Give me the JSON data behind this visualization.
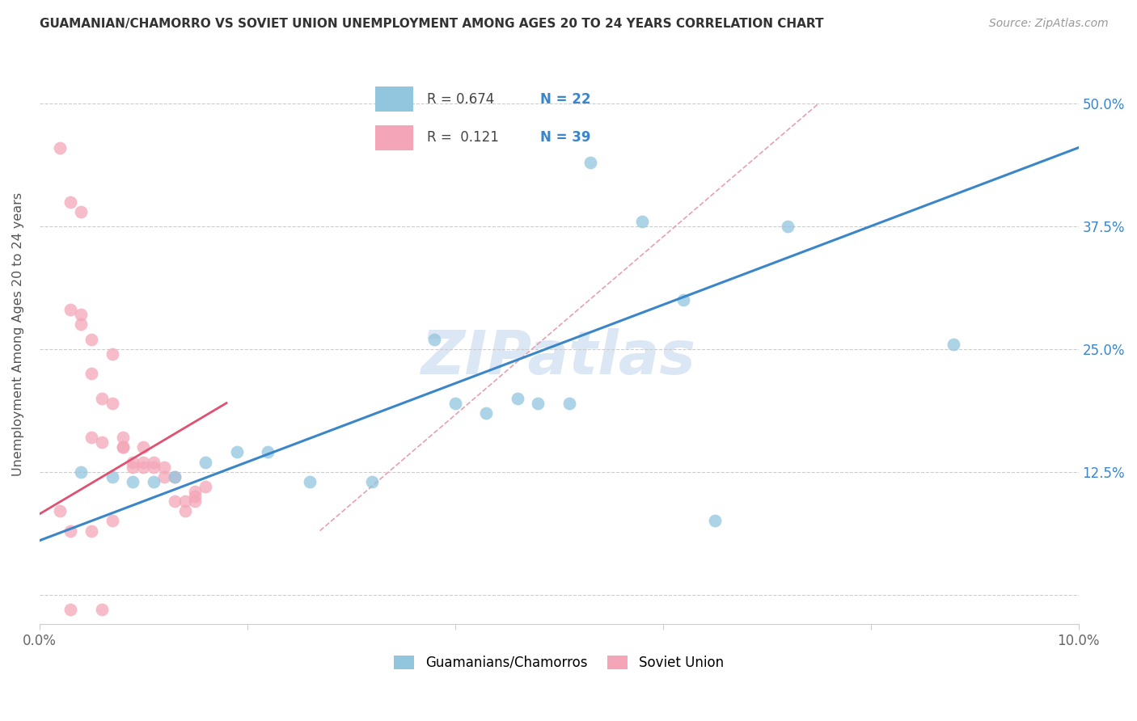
{
  "title": "GUAMANIAN/CHAMORRO VS SOVIET UNION UNEMPLOYMENT AMONG AGES 20 TO 24 YEARS CORRELATION CHART",
  "source": "Source: ZipAtlas.com",
  "ylabel": "Unemployment Among Ages 20 to 24 years",
  "xlim": [
    0.0,
    0.1
  ],
  "ylim": [
    -0.03,
    0.56
  ],
  "xticks": [
    0.0,
    0.02,
    0.04,
    0.06,
    0.08,
    0.1
  ],
  "xticklabels": [
    "0.0%",
    "",
    "",
    "",
    "",
    "10.0%"
  ],
  "yticks": [
    0.0,
    0.125,
    0.25,
    0.375,
    0.5
  ],
  "yticklabels_right": [
    "",
    "12.5%",
    "25.0%",
    "37.5%",
    "50.0%"
  ],
  "watermark": "ZIPatlas",
  "blue_color": "#92c5de",
  "pink_color": "#f4a6b8",
  "blue_line_color": "#3a86c8",
  "pink_line_color": "#e05070",
  "dashed_line_color": "#e8a0b0",
  "blue_scatter": [
    [
      0.004,
      0.125
    ],
    [
      0.007,
      0.12
    ],
    [
      0.009,
      0.115
    ],
    [
      0.011,
      0.115
    ],
    [
      0.013,
      0.12
    ],
    [
      0.016,
      0.135
    ],
    [
      0.019,
      0.145
    ],
    [
      0.022,
      0.145
    ],
    [
      0.026,
      0.115
    ],
    [
      0.032,
      0.115
    ],
    [
      0.038,
      0.26
    ],
    [
      0.04,
      0.195
    ],
    [
      0.043,
      0.185
    ],
    [
      0.046,
      0.2
    ],
    [
      0.048,
      0.195
    ],
    [
      0.051,
      0.195
    ],
    [
      0.053,
      0.44
    ],
    [
      0.058,
      0.38
    ],
    [
      0.062,
      0.3
    ],
    [
      0.072,
      0.375
    ],
    [
      0.088,
      0.255
    ],
    [
      0.065,
      0.075
    ]
  ],
  "pink_scatter": [
    [
      0.002,
      0.455
    ],
    [
      0.003,
      0.4
    ],
    [
      0.004,
      0.39
    ],
    [
      0.003,
      0.29
    ],
    [
      0.004,
      0.275
    ],
    [
      0.004,
      0.285
    ],
    [
      0.005,
      0.26
    ],
    [
      0.005,
      0.225
    ],
    [
      0.005,
      0.16
    ],
    [
      0.006,
      0.2
    ],
    [
      0.006,
      0.155
    ],
    [
      0.007,
      0.245
    ],
    [
      0.007,
      0.195
    ],
    [
      0.008,
      0.16
    ],
    [
      0.008,
      0.15
    ],
    [
      0.008,
      0.15
    ],
    [
      0.009,
      0.135
    ],
    [
      0.009,
      0.13
    ],
    [
      0.01,
      0.13
    ],
    [
      0.01,
      0.135
    ],
    [
      0.01,
      0.15
    ],
    [
      0.011,
      0.135
    ],
    [
      0.011,
      0.13
    ],
    [
      0.012,
      0.12
    ],
    [
      0.012,
      0.13
    ],
    [
      0.013,
      0.12
    ],
    [
      0.013,
      0.095
    ],
    [
      0.014,
      0.085
    ],
    [
      0.014,
      0.095
    ],
    [
      0.015,
      0.095
    ],
    [
      0.015,
      0.1
    ],
    [
      0.015,
      0.105
    ],
    [
      0.016,
      0.11
    ],
    [
      0.002,
      0.085
    ],
    [
      0.003,
      0.065
    ],
    [
      0.005,
      0.065
    ],
    [
      0.006,
      -0.015
    ],
    [
      0.007,
      0.075
    ],
    [
      0.003,
      -0.015
    ]
  ],
  "blue_line_x": [
    0.0,
    0.1
  ],
  "blue_line_y": [
    0.055,
    0.455
  ],
  "pink_line_x": [
    0.0,
    0.018
  ],
  "pink_line_y": [
    0.082,
    0.195
  ],
  "dashed_line_x": [
    0.027,
    0.075
  ],
  "dashed_line_y": [
    0.065,
    0.5
  ]
}
